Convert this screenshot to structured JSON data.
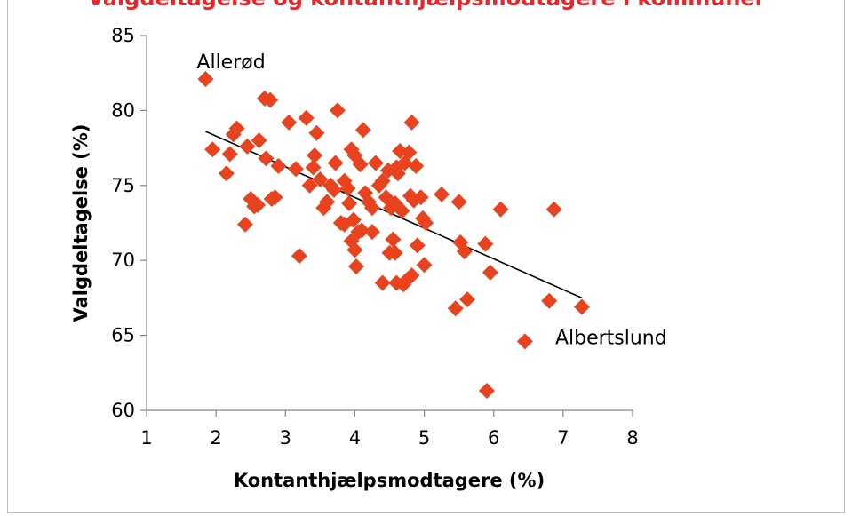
{
  "chart_data": {
    "type": "scatter",
    "title": "Valgdeltagelse og kontanthjælpsmodtagere i kommuner",
    "xlabel": "Kontanthjælpsmodtagere (%)",
    "ylabel": "Valgdeltagelse (%)",
    "xlim": [
      1,
      8
    ],
    "ylim": [
      60,
      85
    ],
    "xticks": [
      "1",
      "2",
      "3",
      "4",
      "5",
      "6",
      "7",
      "8"
    ],
    "yticks": [
      "60",
      "65",
      "70",
      "75",
      "80",
      "85"
    ],
    "grid": false,
    "legend": "none",
    "marker_color": "#e8431f",
    "trendline": {
      "x": [
        1.85,
        7.27
      ],
      "y": [
        78.6,
        67.5
      ]
    },
    "annotations": [
      {
        "text": "Allerød",
        "x": 1.85,
        "y": 82.1
      },
      {
        "text": "Albertslund",
        "x": 7.27,
        "y": 66.9
      }
    ],
    "points": [
      [
        1.85,
        82.1
      ],
      [
        1.95,
        77.4
      ],
      [
        2.15,
        75.8
      ],
      [
        2.2,
        77.1
      ],
      [
        2.25,
        78.4
      ],
      [
        2.3,
        78.8
      ],
      [
        2.42,
        72.4
      ],
      [
        2.45,
        77.6
      ],
      [
        2.5,
        74.1
      ],
      [
        2.55,
        73.6
      ],
      [
        2.6,
        73.7
      ],
      [
        2.62,
        78.0
      ],
      [
        2.7,
        80.8
      ],
      [
        2.72,
        76.8
      ],
      [
        2.78,
        80.7
      ],
      [
        2.8,
        74.1
      ],
      [
        2.85,
        74.2
      ],
      [
        2.9,
        76.3
      ],
      [
        3.05,
        79.2
      ],
      [
        3.15,
        76.1
      ],
      [
        3.2,
        70.3
      ],
      [
        3.3,
        79.5
      ],
      [
        3.35,
        75.0
      ],
      [
        3.4,
        76.2
      ],
      [
        3.42,
        77.0
      ],
      [
        3.45,
        78.5
      ],
      [
        3.5,
        75.4
      ],
      [
        3.55,
        73.5
      ],
      [
        3.6,
        73.9
      ],
      [
        3.65,
        75.0
      ],
      [
        3.7,
        74.7
      ],
      [
        3.72,
        76.5
      ],
      [
        3.75,
        80.0
      ],
      [
        3.8,
        72.5
      ],
      [
        3.85,
        72.4
      ],
      [
        3.85,
        75.3
      ],
      [
        3.9,
        74.8
      ],
      [
        3.92,
        73.8
      ],
      [
        3.95,
        71.3
      ],
      [
        3.95,
        77.4
      ],
      [
        3.98,
        72.7
      ],
      [
        4.0,
        77.0
      ],
      [
        4.0,
        70.7
      ],
      [
        4.02,
        69.6
      ],
      [
        4.05,
        71.9
      ],
      [
        4.08,
        76.4
      ],
      [
        4.1,
        72.0
      ],
      [
        4.12,
        78.7
      ],
      [
        4.15,
        74.5
      ],
      [
        4.2,
        73.9
      ],
      [
        4.25,
        71.9
      ],
      [
        4.25,
        73.5
      ],
      [
        4.3,
        76.5
      ],
      [
        4.35,
        75.0
      ],
      [
        4.4,
        68.5
      ],
      [
        4.4,
        75.3
      ],
      [
        4.45,
        74.2
      ],
      [
        4.48,
        76.0
      ],
      [
        4.5,
        70.5
      ],
      [
        4.52,
        73.5
      ],
      [
        4.55,
        71.4
      ],
      [
        4.58,
        70.5
      ],
      [
        4.58,
        73.8
      ],
      [
        4.6,
        76.2
      ],
      [
        4.6,
        68.5
      ],
      [
        4.62,
        75.8
      ],
      [
        4.65,
        77.3
      ],
      [
        4.68,
        73.3
      ],
      [
        4.7,
        68.4
      ],
      [
        4.72,
        76.5
      ],
      [
        4.75,
        68.7
      ],
      [
        4.78,
        77.2
      ],
      [
        4.8,
        74.3
      ],
      [
        4.82,
        69.0
      ],
      [
        4.82,
        79.2
      ],
      [
        4.85,
        74.0
      ],
      [
        4.88,
        76.3
      ],
      [
        4.9,
        71.0
      ],
      [
        4.95,
        74.2
      ],
      [
        4.98,
        72.8
      ],
      [
        5.0,
        69.7
      ],
      [
        5.02,
        72.5
      ],
      [
        5.25,
        74.4
      ],
      [
        5.45,
        66.8
      ],
      [
        5.5,
        73.9
      ],
      [
        5.52,
        71.2
      ],
      [
        5.58,
        70.6
      ],
      [
        5.62,
        67.4
      ],
      [
        5.88,
        71.1
      ],
      [
        5.9,
        61.3
      ],
      [
        5.95,
        69.2
      ],
      [
        6.1,
        73.4
      ],
      [
        6.45,
        64.6
      ],
      [
        6.8,
        67.3
      ],
      [
        6.87,
        73.4
      ],
      [
        7.27,
        66.9
      ]
    ]
  }
}
